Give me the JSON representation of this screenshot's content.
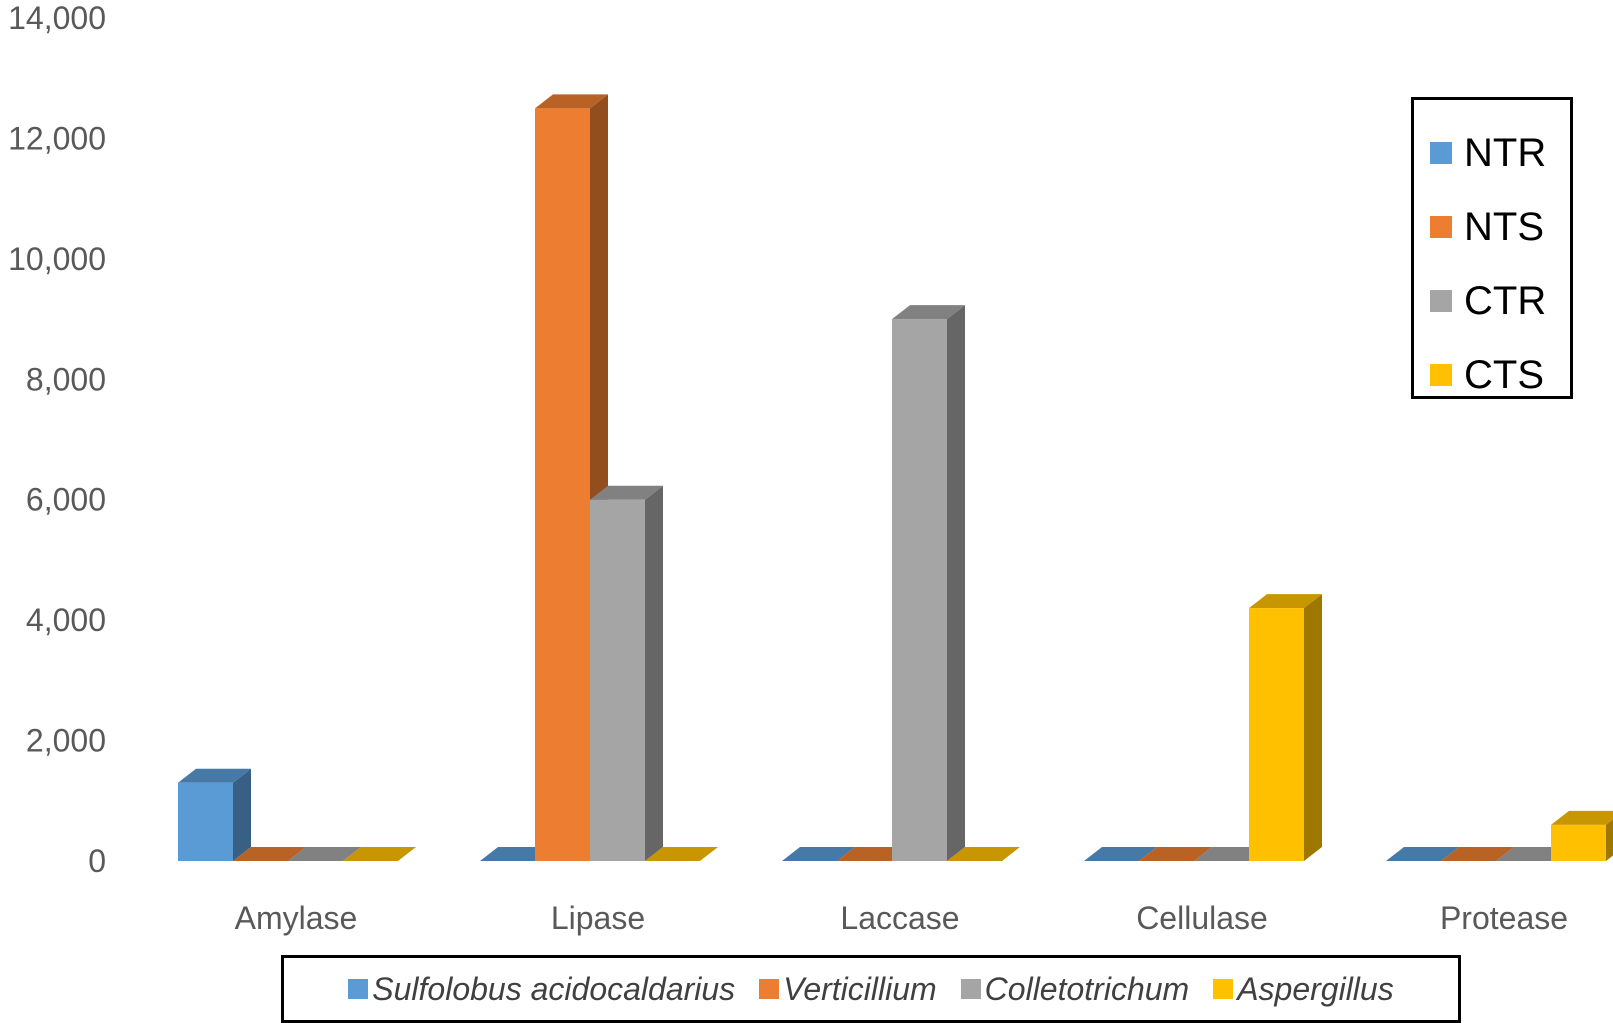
{
  "chart_data": {
    "type": "bar",
    "categories": [
      "Amylase",
      "Lipase",
      "Laccase",
      "Cellulase",
      "Protease"
    ],
    "series": [
      {
        "name": "NTR",
        "values": [
          1300,
          0,
          0,
          0,
          0
        ],
        "color": "#5b9bd5"
      },
      {
        "name": "NTS",
        "values": [
          0,
          12500,
          0,
          0,
          0
        ],
        "color": "#ed7d31"
      },
      {
        "name": "CTR",
        "values": [
          0,
          6000,
          9000,
          0,
          0
        ],
        "color": "#a5a5a5"
      },
      {
        "name": "CTS",
        "values": [
          0,
          0,
          0,
          4200,
          600
        ],
        "color": "#ffc000"
      }
    ],
    "ylim": [
      0,
      14000
    ],
    "yticks": [
      "0",
      "2,000",
      "4,000",
      "6,000",
      "8,000",
      "10,000",
      "12,000",
      "14,000"
    ],
    "grid": false,
    "style": "3d-column",
    "legend": {
      "placement": "right",
      "items": [
        {
          "label": "NTR",
          "color": "#5b9bd5"
        },
        {
          "label": "NTS",
          "color": "#ed7d31"
        },
        {
          "label": "CTR",
          "color": "#a5a5a5"
        },
        {
          "label": "CTS",
          "color": "#ffc000"
        }
      ]
    },
    "secondary_legend": {
      "placement": "bottom",
      "items": [
        {
          "label": "Sulfolobus acidocaldarius",
          "color": "#5b9bd5"
        },
        {
          "label": "Verticillium",
          "color": "#ed7d31"
        },
        {
          "label": "Colletotrichum",
          "color": "#a5a5a5"
        },
        {
          "label": "Aspergillus",
          "color": "#ffc000"
        }
      ]
    }
  }
}
